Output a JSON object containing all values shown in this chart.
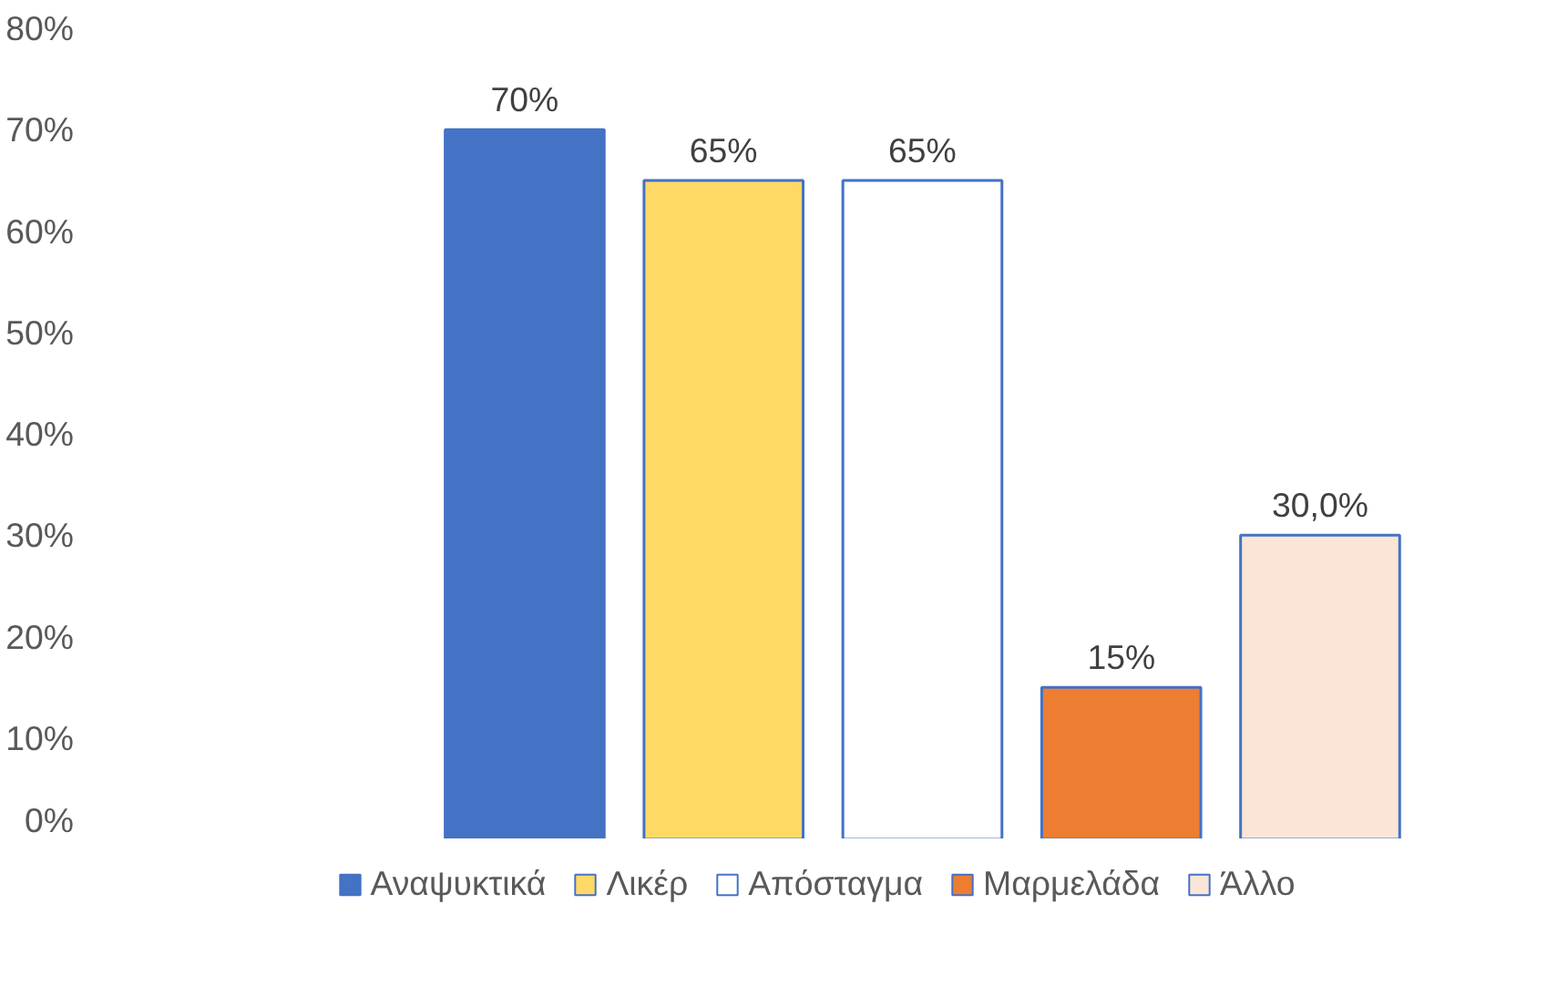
{
  "chart_data": {
    "type": "bar",
    "categories": [
      null
    ],
    "series": [
      {
        "name": "Αναψυκτικά",
        "color": "#4472c4",
        "values": [
          70
        ],
        "value_labels": [
          "70%"
        ]
      },
      {
        "name": "Λικέρ",
        "color": "#ffd966",
        "values": [
          65
        ],
        "value_labels": [
          "65%"
        ]
      },
      {
        "name": "Απόσταγμα",
        "color": "#ffffff",
        "values": [
          65
        ],
        "value_labels": [
          "65%"
        ]
      },
      {
        "name": "Μαρμελάδα",
        "color": "#ed7d31",
        "values": [
          15
        ],
        "value_labels": [
          "15%"
        ]
      },
      {
        "name": "Άλλο",
        "color": "#fbe5d6",
        "values": [
          30
        ],
        "value_labels": [
          "30,0%"
        ]
      }
    ],
    "ylim": [
      0,
      80
    ],
    "yticks": [
      {
        "value": 0,
        "label": "0%"
      },
      {
        "value": 10,
        "label": "10%"
      },
      {
        "value": 20,
        "label": "20%"
      },
      {
        "value": 30,
        "label": "30%"
      },
      {
        "value": 40,
        "label": "40%"
      },
      {
        "value": 50,
        "label": "50%"
      },
      {
        "value": 60,
        "label": "60%"
      },
      {
        "value": 70,
        "label": "70%"
      },
      {
        "value": 80,
        "label": "80%"
      }
    ],
    "grid": false,
    "legend": "bottom"
  }
}
